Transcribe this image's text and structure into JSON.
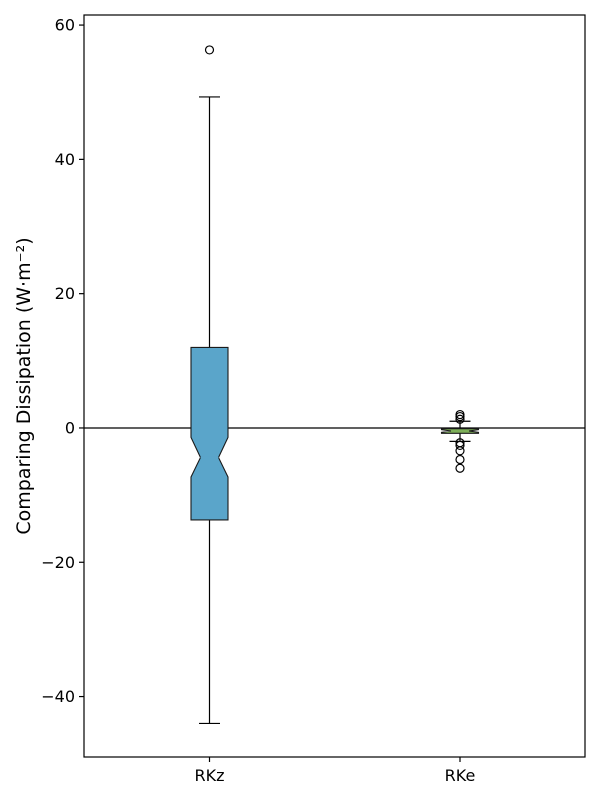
{
  "chart_data": {
    "type": "boxplot",
    "title": "",
    "xlabel": "",
    "ylabel": "Comparing Dissipation (W·m⁻²)",
    "ylim": [
      -49,
      61.5
    ],
    "yticks": [
      {
        "value": 60,
        "label": "60"
      },
      {
        "value": 40,
        "label": "40"
      },
      {
        "value": 20,
        "label": "20"
      },
      {
        "value": 0,
        "label": "0"
      },
      {
        "value": -20,
        "label": "−20"
      },
      {
        "value": -40,
        "label": "−40"
      }
    ],
    "categories": [
      "RKz",
      "RKe"
    ],
    "reference_line": 0,
    "grid": false,
    "legend": "none",
    "series": [
      {
        "category": "RKz",
        "whisker_low": -44.0,
        "q1": -13.7,
        "notch_low": -1.4,
        "median": -4.4,
        "notch_high": -7.3,
        "q3": 12.0,
        "whisker_high": 49.3,
        "outliers": [
          56.3
        ],
        "color": "#5aa5ca"
      },
      {
        "category": "RKe",
        "whisker_low": -2.0,
        "q1": -0.8,
        "notch_low": -0.25,
        "median": -0.45,
        "notch_high": -0.65,
        "q3": -0.1,
        "whisker_high": 1.0,
        "outliers": [
          2.0,
          1.7,
          1.3,
          -2.2,
          -2.6,
          -3.4,
          -4.7,
          -6.0
        ],
        "color": "#7fb05a"
      }
    ]
  },
  "colors": {
    "axis": "#000000",
    "box_edge": "#1a1a1a",
    "background": "#ffffff"
  }
}
